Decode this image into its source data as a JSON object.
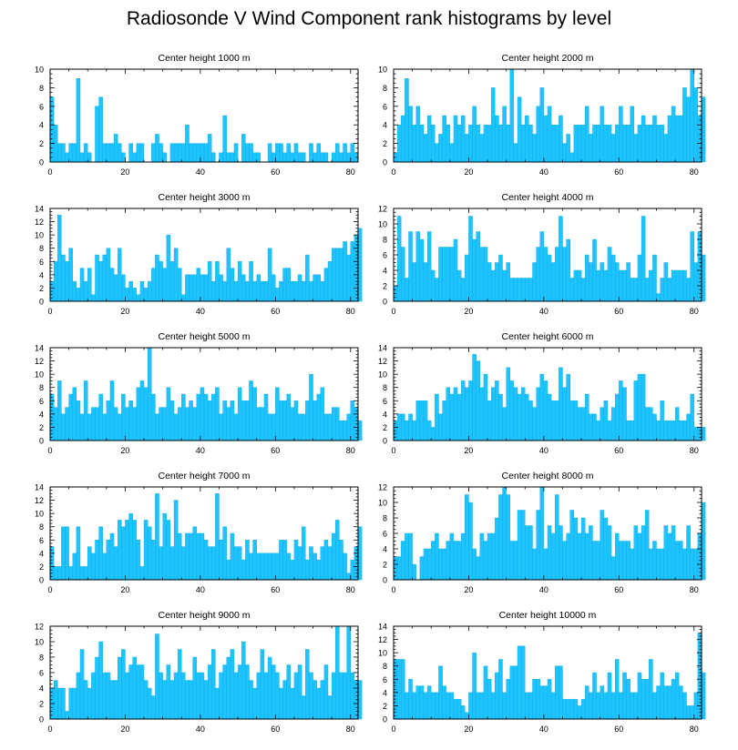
{
  "title": "Radiosonde V Wind Component rank histograms by level",
  "colors": {
    "bar": "#1ec4ff",
    "bar_edge": "#0aa8e6",
    "axis": "#000000"
  },
  "chart_data": [
    {
      "type": "bar",
      "title": "Center height 1000 m",
      "xlim": [
        0,
        82
      ],
      "ylim": [
        0,
        10
      ],
      "xticks": [
        0,
        20,
        40,
        60,
        80
      ],
      "yticks": [
        0,
        2,
        4,
        6,
        8,
        10
      ],
      "values": [
        7,
        4,
        2,
        2,
        1,
        2,
        2,
        9,
        1,
        2,
        1,
        0,
        6,
        7,
        2,
        2,
        2,
        3,
        2,
        1,
        0,
        2,
        1,
        2,
        2,
        0,
        0,
        2,
        3,
        2,
        1,
        0,
        2,
        2,
        2,
        2,
        4,
        2,
        2,
        2,
        2,
        2,
        3,
        1,
        0,
        1,
        5,
        1,
        1,
        2,
        0,
        3,
        2,
        2,
        1,
        1,
        0,
        0,
        2,
        1,
        2,
        2,
        1,
        2,
        1,
        2,
        1,
        1,
        0,
        2,
        1,
        2,
        1,
        1,
        0,
        1,
        2,
        1,
        2,
        1,
        2,
        1
      ]
    },
    {
      "type": "bar",
      "title": "Center height 2000 m",
      "xlim": [
        0,
        82
      ],
      "ylim": [
        0,
        10
      ],
      "xticks": [
        0,
        20,
        40,
        60,
        80
      ],
      "yticks": [
        0,
        2,
        4,
        6,
        8,
        10
      ],
      "values": [
        1,
        4,
        5,
        9,
        6,
        4,
        6,
        4,
        3,
        5,
        4,
        2,
        3,
        5,
        4,
        2,
        5,
        4,
        5,
        3,
        4,
        6,
        4,
        3,
        4,
        4,
        8,
        5,
        4,
        6,
        4,
        10,
        2,
        7,
        4,
        5,
        4,
        3,
        6,
        8,
        5,
        6,
        4,
        4,
        5,
        2,
        3,
        1,
        4,
        4,
        4,
        6,
        3,
        4,
        4,
        6,
        4,
        4,
        3,
        4,
        6,
        4,
        4,
        6,
        3,
        4,
        5,
        4,
        4,
        5,
        4,
        4,
        3,
        5,
        6,
        5,
        5,
        8,
        7,
        10,
        8,
        5,
        7
      ]
    },
    {
      "type": "bar",
      "title": "Center height 3000 m",
      "xlim": [
        0,
        82
      ],
      "ylim": [
        0,
        14
      ],
      "xticks": [
        0,
        20,
        40,
        60,
        80
      ],
      "yticks": [
        0,
        2,
        4,
        6,
        8,
        10,
        12,
        14
      ],
      "values": [
        3,
        6,
        13,
        7,
        6,
        8,
        3,
        2,
        5,
        3,
        5,
        1,
        7,
        6,
        7,
        8,
        5,
        4,
        8,
        4,
        2,
        3,
        2,
        1,
        3,
        2,
        3,
        5,
        7,
        6,
        5,
        10,
        6,
        8,
        5,
        1,
        4,
        4,
        4,
        5,
        4,
        4,
        6,
        3,
        6,
        4,
        3,
        8,
        5,
        3,
        6,
        4,
        3,
        6,
        3,
        4,
        3,
        3,
        8,
        4,
        2,
        3,
        5,
        5,
        3,
        3,
        4,
        3,
        7,
        3,
        4,
        4,
        3,
        5,
        6,
        8,
        8,
        8,
        9,
        7,
        9,
        10,
        11
      ]
    },
    {
      "type": "bar",
      "title": "Center height 4000 m",
      "xlim": [
        0,
        82
      ],
      "ylim": [
        0,
        12
      ],
      "xticks": [
        0,
        20,
        40,
        60,
        80
      ],
      "yticks": [
        0,
        2,
        4,
        6,
        8,
        10,
        12
      ],
      "values": [
        2,
        11,
        7,
        3,
        9,
        5,
        9,
        8,
        5,
        9,
        4,
        3,
        7,
        7,
        7,
        7,
        8,
        4,
        3,
        6,
        11,
        8,
        9,
        7,
        7,
        5,
        4,
        5,
        6,
        4,
        5,
        3,
        3,
        3,
        3,
        3,
        3,
        5,
        7,
        9,
        7,
        6,
        5,
        7,
        11,
        7,
        8,
        3,
        4,
        4,
        3,
        6,
        5,
        8,
        4,
        5,
        4,
        7,
        6,
        5,
        4,
        4,
        5,
        3,
        3,
        6,
        11,
        3,
        4,
        6,
        1,
        3,
        5,
        3,
        4,
        4,
        4,
        4,
        3,
        9,
        5,
        9,
        6
      ]
    },
    {
      "type": "bar",
      "title": "Center height 5000 m",
      "xlim": [
        0,
        82
      ],
      "ylim": [
        0,
        14
      ],
      "xticks": [
        0,
        20,
        40,
        60,
        80
      ],
      "yticks": [
        0,
        2,
        4,
        6,
        8,
        10,
        12,
        14
      ],
      "values": [
        7,
        5,
        9,
        4,
        5,
        7,
        8,
        6,
        4,
        9,
        4,
        5,
        5,
        7,
        4,
        6,
        9,
        5,
        4,
        7,
        5,
        6,
        5,
        8,
        9,
        8,
        14,
        7,
        4,
        5,
        5,
        8,
        6,
        4,
        5,
        7,
        5,
        6,
        5,
        7,
        8,
        7,
        6,
        7,
        8,
        4,
        6,
        5,
        6,
        4,
        8,
        6,
        6,
        9,
        8,
        5,
        5,
        7,
        4,
        4,
        8,
        6,
        6,
        7,
        5,
        6,
        4,
        4,
        6,
        10,
        6,
        7,
        8,
        4,
        4,
        5,
        5,
        3,
        3,
        4,
        6,
        5,
        3
      ]
    },
    {
      "type": "bar",
      "title": "Center height 6000 m",
      "xlim": [
        0,
        82
      ],
      "ylim": [
        0,
        14
      ],
      "xticks": [
        0,
        20,
        40,
        60,
        80
      ],
      "yticks": [
        0,
        2,
        4,
        6,
        8,
        10,
        12,
        14
      ],
      "values": [
        3,
        4,
        4,
        3,
        4,
        3,
        6,
        6,
        6,
        3,
        2,
        7,
        4,
        6,
        8,
        7,
        8,
        7,
        9,
        8,
        9,
        13,
        12,
        8,
        10,
        6,
        8,
        9,
        7,
        5,
        11,
        9,
        8,
        7,
        8,
        7,
        6,
        5,
        8,
        10,
        9,
        7,
        6,
        6,
        11,
        8,
        10,
        6,
        6,
        5,
        5,
        7,
        4,
        4,
        3,
        5,
        6,
        3,
        5,
        7,
        9,
        8,
        3,
        3,
        9,
        10,
        10,
        5,
        5,
        4,
        3,
        6,
        3,
        3,
        3,
        5,
        3,
        3,
        4,
        7,
        2,
        2,
        2
      ]
    },
    {
      "type": "bar",
      "title": "Center height 7000 m",
      "xlim": [
        0,
        82
      ],
      "ylim": [
        0,
        14
      ],
      "xticks": [
        0,
        20,
        40,
        60,
        80
      ],
      "yticks": [
        0,
        2,
        4,
        6,
        8,
        10,
        12,
        14
      ],
      "values": [
        5,
        2,
        2,
        8,
        8,
        2,
        4,
        8,
        2,
        2,
        5,
        4,
        6,
        8,
        4,
        6,
        7,
        5,
        9,
        8,
        9,
        10,
        9,
        6,
        2,
        9,
        8,
        6,
        13,
        5,
        10,
        9,
        5,
        12,
        7,
        5,
        7,
        7,
        8,
        7,
        7,
        6,
        5,
        5,
        13,
        6,
        8,
        3,
        7,
        5,
        5,
        3,
        6,
        4,
        6,
        4,
        4,
        4,
        4,
        4,
        4,
        6,
        6,
        4,
        3,
        6,
        5,
        8,
        3,
        5,
        4,
        3,
        5,
        6,
        5,
        7,
        9,
        6,
        4,
        1,
        3,
        5,
        8
      ]
    },
    {
      "type": "bar",
      "title": "Center height 8000 m",
      "xlim": [
        0,
        82
      ],
      "ylim": [
        0,
        12
      ],
      "xticks": [
        0,
        20,
        40,
        60,
        80
      ],
      "yticks": [
        0,
        2,
        4,
        6,
        8,
        10,
        12
      ],
      "values": [
        3,
        3,
        5,
        6,
        6,
        2,
        0,
        3,
        4,
        4,
        5,
        6,
        4,
        4,
        5,
        6,
        5,
        5,
        6,
        11,
        10,
        4,
        3,
        6,
        5,
        6,
        6,
        8,
        11,
        12,
        11,
        5,
        5,
        9,
        9,
        7,
        7,
        4,
        9,
        12,
        4,
        7,
        6,
        11,
        7,
        5,
        6,
        9,
        8,
        6,
        8,
        6,
        7,
        5,
        5,
        9,
        8,
        7,
        3,
        6,
        5,
        5,
        5,
        4,
        7,
        6,
        7,
        9,
        4,
        5,
        4,
        4,
        7,
        6,
        7,
        5,
        5,
        4,
        7,
        4,
        4,
        6,
        10
      ]
    },
    {
      "type": "bar",
      "title": "Center height 9000 m",
      "xlim": [
        0,
        82
      ],
      "ylim": [
        0,
        12
      ],
      "xticks": [
        0,
        20,
        40,
        60,
        80
      ],
      "yticks": [
        0,
        2,
        4,
        6,
        8,
        10,
        12
      ],
      "values": [
        4,
        5,
        4,
        4,
        1,
        4,
        4,
        6,
        9,
        5,
        4,
        6,
        8,
        10,
        6,
        6,
        5,
        5,
        8,
        9,
        6,
        7,
        8,
        7,
        7,
        5,
        4,
        3,
        11,
        6,
        5,
        7,
        5,
        6,
        9,
        6,
        5,
        5,
        8,
        6,
        6,
        5,
        7,
        9,
        4,
        6,
        7,
        8,
        9,
        6,
        7,
        10,
        7,
        5,
        4,
        6,
        9,
        6,
        8,
        7,
        6,
        4,
        5,
        7,
        4,
        6,
        7,
        3,
        9,
        6,
        5,
        4,
        5,
        7,
        3,
        6,
        12,
        6,
        6,
        12,
        6,
        5,
        5
      ]
    },
    {
      "type": "bar",
      "title": "Center height 10000 m",
      "xlim": [
        0,
        82
      ],
      "ylim": [
        0,
        14
      ],
      "xticks": [
        0,
        20,
        40,
        60,
        80
      ],
      "yticks": [
        0,
        2,
        4,
        6,
        8,
        10,
        12,
        14
      ],
      "values": [
        9,
        9,
        9,
        4,
        6,
        4,
        5,
        5,
        4,
        5,
        4,
        4,
        8,
        5,
        4,
        4,
        3,
        3,
        2,
        1,
        4,
        10,
        4,
        4,
        8,
        6,
        4,
        7,
        9,
        4,
        6,
        8,
        8,
        11,
        11,
        4,
        4,
        6,
        6,
        5,
        5,
        6,
        4,
        8,
        8,
        3,
        3,
        3,
        3,
        2,
        3,
        5,
        4,
        7,
        4,
        5,
        4,
        7,
        4,
        9,
        4,
        7,
        6,
        4,
        4,
        7,
        6,
        6,
        9,
        4,
        5,
        7,
        5,
        5,
        6,
        7,
        5,
        4,
        2,
        2,
        4,
        13,
        7
      ]
    }
  ]
}
